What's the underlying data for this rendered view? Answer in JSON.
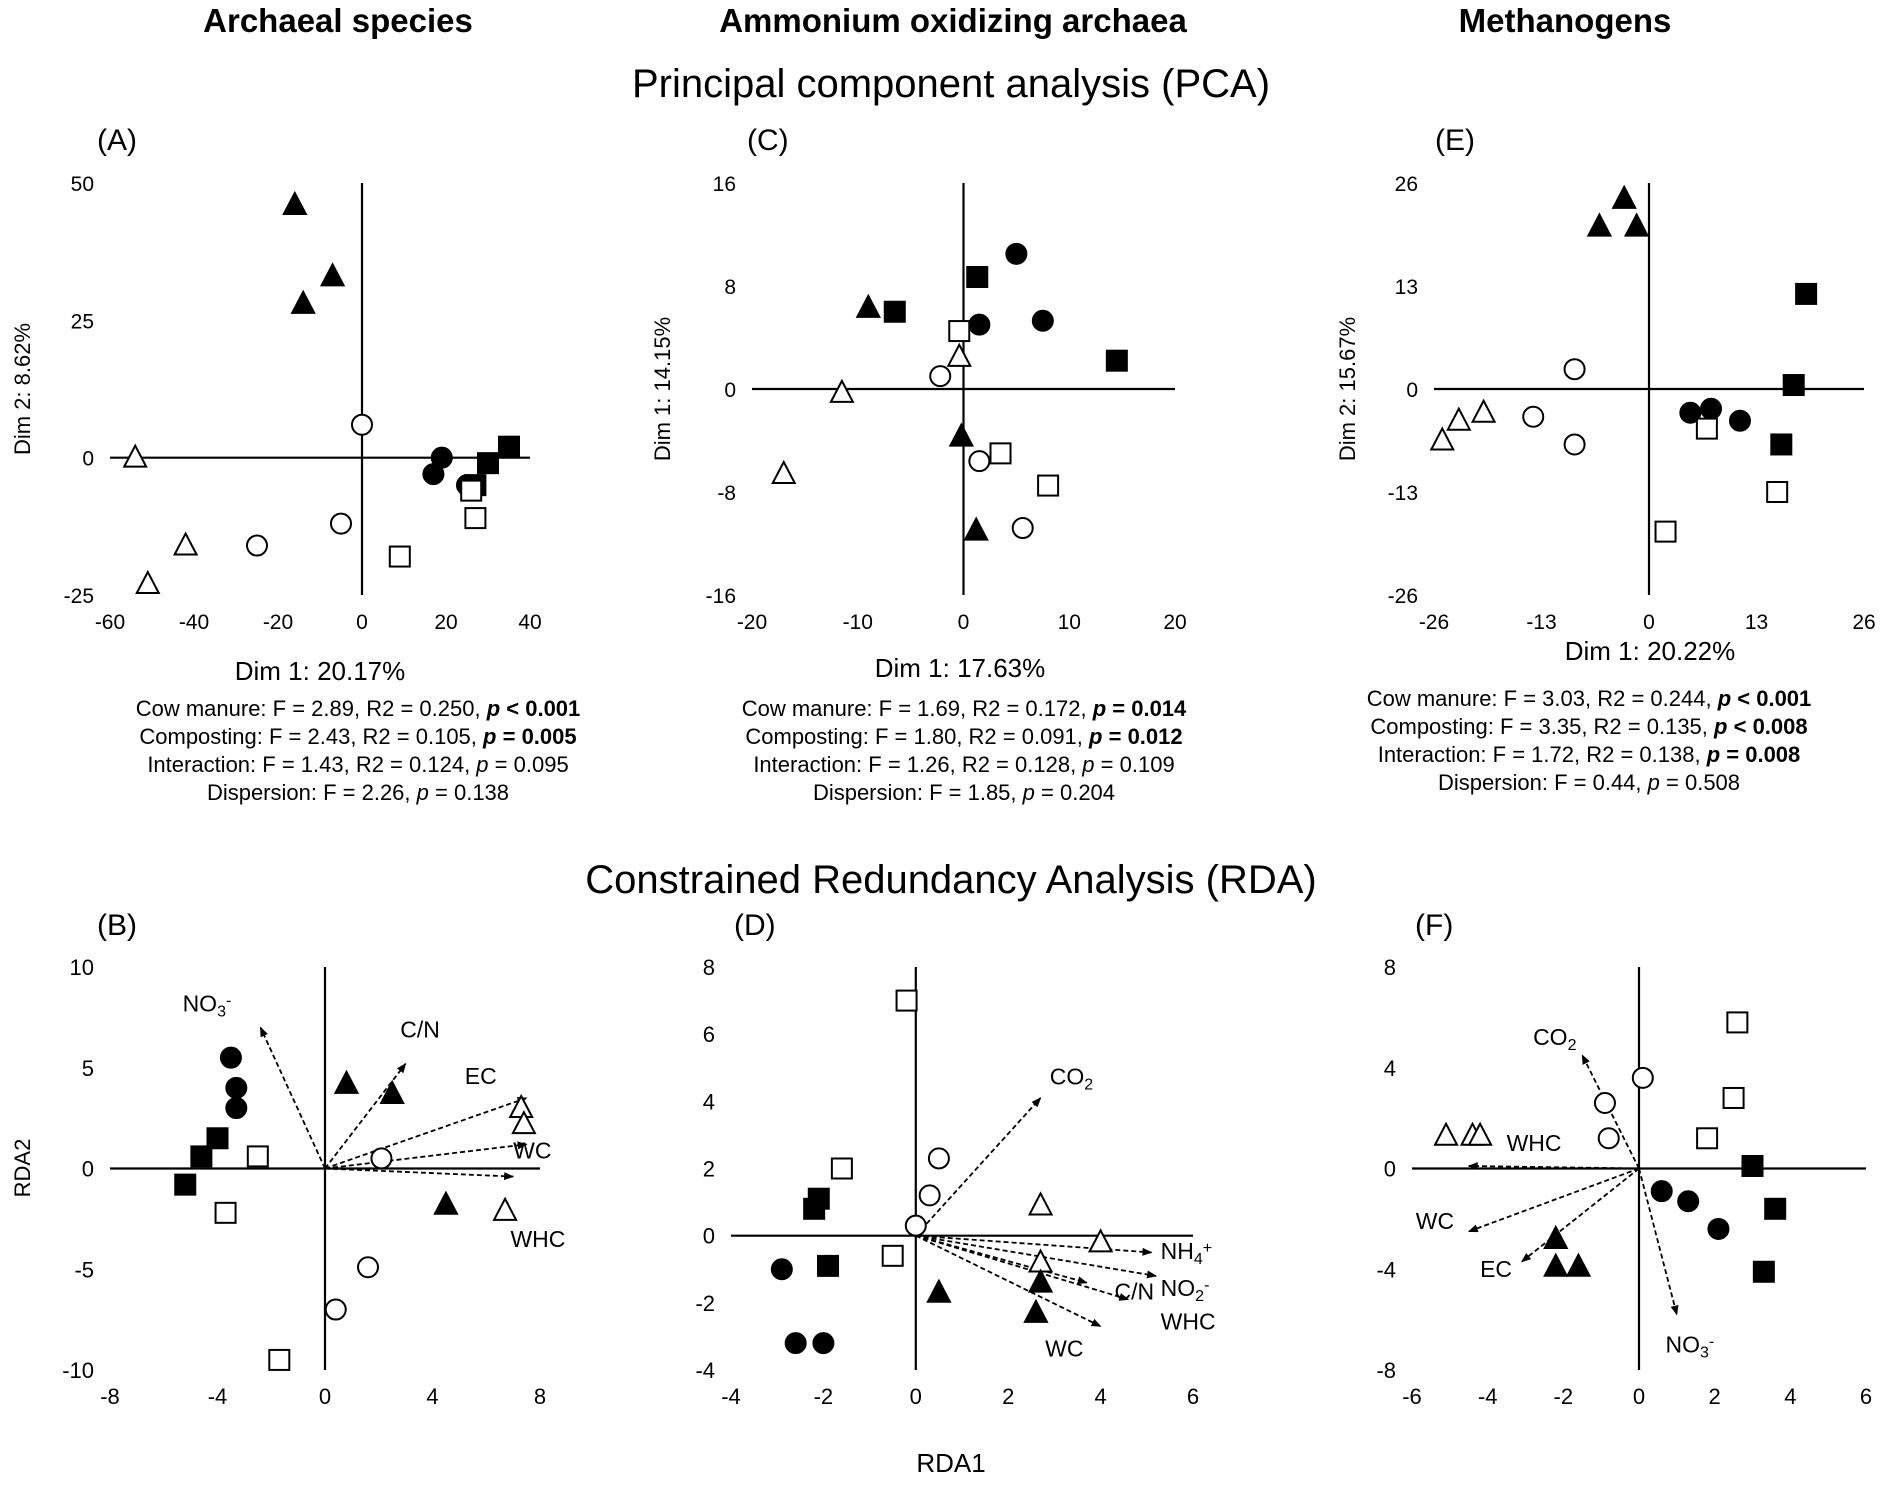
{
  "column_titles": [
    "Archaeal species",
    "Ammonium oxidizing archaea",
    "Methanogens"
  ],
  "row_titles": {
    "pca": "Principal component analysis (PCA)",
    "rda": "Constrained Redundancy Analysis (RDA)"
  },
  "shared_xlabel": "RDA1",
  "chart_data": [
    {
      "panel": "(A)",
      "type": "scatter",
      "title": "PCA - Archaeal species",
      "xlabel": "Dim 1: 20.17%",
      "ylabel": "Dim 2: 8.62%",
      "xlim": [
        -60,
        40
      ],
      "ylim": [
        -25,
        50
      ],
      "xticks": [
        -60,
        -40,
        -20,
        0,
        20,
        40
      ],
      "yticks": [
        -25,
        0,
        25,
        50
      ],
      "points": [
        {
          "shape": "triangle",
          "fill": "filled",
          "x": -16,
          "y": 46
        },
        {
          "shape": "triangle",
          "fill": "filled",
          "x": -7,
          "y": 33
        },
        {
          "shape": "triangle",
          "fill": "filled",
          "x": -14,
          "y": 28
        },
        {
          "shape": "triangle",
          "fill": "open",
          "x": -54,
          "y": 0
        },
        {
          "shape": "triangle",
          "fill": "open",
          "x": -42,
          "y": -16
        },
        {
          "shape": "triangle",
          "fill": "open",
          "x": -51,
          "y": -23
        },
        {
          "shape": "circle",
          "fill": "open",
          "x": 0,
          "y": 6
        },
        {
          "shape": "circle",
          "fill": "open",
          "x": -5,
          "y": -12
        },
        {
          "shape": "circle",
          "fill": "open",
          "x": -25,
          "y": -16
        },
        {
          "shape": "circle",
          "fill": "filled",
          "x": 19,
          "y": 0
        },
        {
          "shape": "circle",
          "fill": "filled",
          "x": 17,
          "y": -3
        },
        {
          "shape": "circle",
          "fill": "filled",
          "x": 25,
          "y": -5
        },
        {
          "shape": "square",
          "fill": "filled",
          "x": 35,
          "y": 2
        },
        {
          "shape": "square",
          "fill": "filled",
          "x": 30,
          "y": -1
        },
        {
          "shape": "square",
          "fill": "filled",
          "x": 27,
          "y": -5
        },
        {
          "shape": "square",
          "fill": "open",
          "x": 27,
          "y": -11
        },
        {
          "shape": "square",
          "fill": "open",
          "x": 9,
          "y": -18
        },
        {
          "shape": "square",
          "fill": "open",
          "x": 26,
          "y": -6
        }
      ],
      "stats": [
        {
          "label": "Cow manure",
          "F": "2.89",
          "R2": "0.250",
          "p": "< 0.001",
          "sig": true
        },
        {
          "label": "Composting",
          "F": "2.43",
          "R2": "0.105",
          "p": "= 0.005",
          "sig": true
        },
        {
          "label": "Interaction",
          "F": "1.43",
          "R2": "0.124",
          "p": "= 0.095",
          "sig": false
        },
        {
          "label": "Dispersion",
          "F": "2.26",
          "p": "= 0.138",
          "sig": false
        }
      ]
    },
    {
      "panel": "(C)",
      "type": "scatter",
      "title": "PCA - Ammonium oxidizing archaea",
      "xlabel": "Dim 1: 17.63%",
      "ylabel": "Dim 1: 14.15%",
      "xlim": [
        -20,
        20
      ],
      "ylim": [
        -16,
        16
      ],
      "xticks": [
        -20,
        -10,
        0,
        10,
        20
      ],
      "yticks": [
        -16,
        -8,
        0,
        8,
        16
      ],
      "points": [
        {
          "shape": "circle",
          "fill": "filled",
          "x": 5,
          "y": 10.5
        },
        {
          "shape": "circle",
          "fill": "filled",
          "x": 1.5,
          "y": 5
        },
        {
          "shape": "circle",
          "fill": "filled",
          "x": 7.5,
          "y": 5.3
        },
        {
          "shape": "square",
          "fill": "filled",
          "x": 1.3,
          "y": 8.7
        },
        {
          "shape": "square",
          "fill": "filled",
          "x": -6.5,
          "y": 6
        },
        {
          "shape": "square",
          "fill": "filled",
          "x": 14.5,
          "y": 2.2
        },
        {
          "shape": "triangle",
          "fill": "filled",
          "x": -9,
          "y": 6.3
        },
        {
          "shape": "triangle",
          "fill": "filled",
          "x": -0.2,
          "y": -3.7
        },
        {
          "shape": "triangle",
          "fill": "filled",
          "x": 1.2,
          "y": -11
        },
        {
          "shape": "square",
          "fill": "open",
          "x": -0.4,
          "y": 4.5
        },
        {
          "shape": "square",
          "fill": "open",
          "x": 3.5,
          "y": -5
        },
        {
          "shape": "square",
          "fill": "open",
          "x": 8,
          "y": -7.5
        },
        {
          "shape": "triangle",
          "fill": "open",
          "x": -0.4,
          "y": 2.5
        },
        {
          "shape": "triangle",
          "fill": "open",
          "x": -11.5,
          "y": -0.3
        },
        {
          "shape": "triangle",
          "fill": "open",
          "x": -17,
          "y": -6.6
        },
        {
          "shape": "circle",
          "fill": "open",
          "x": -2.2,
          "y": 1
        },
        {
          "shape": "circle",
          "fill": "open",
          "x": 1.5,
          "y": -5.6
        },
        {
          "shape": "circle",
          "fill": "open",
          "x": 5.6,
          "y": -10.8
        }
      ],
      "stats": [
        {
          "label": "Cow manure",
          "F": "1.69",
          "R2": "0.172",
          "p": "= 0.014",
          "sig": true
        },
        {
          "label": "Composting",
          "F": "1.80",
          "R2": "0.091",
          "p": "= 0.012",
          "sig": true
        },
        {
          "label": "Interaction",
          "F": "1.26",
          "R2": "0.128",
          "p": "= 0.109",
          "sig": false
        },
        {
          "label": "Dispersion",
          "F": "1.85",
          "p": "= 0.204",
          "sig": false
        }
      ]
    },
    {
      "panel": "(E)",
      "type": "scatter",
      "title": "PCA - Methanogens",
      "xlabel": "Dim 1: 20.22%",
      "ylabel": "Dim 2: 15.67%",
      "xlim": [
        -26,
        26
      ],
      "ylim": [
        -26,
        26
      ],
      "xticks": [
        -26,
        -13,
        0,
        13,
        26
      ],
      "yticks": [
        -26,
        -13,
        0,
        13,
        26
      ],
      "points": [
        {
          "shape": "triangle",
          "fill": "filled",
          "x": -3,
          "y": 24
        },
        {
          "shape": "triangle",
          "fill": "filled",
          "x": -6,
          "y": 20.5
        },
        {
          "shape": "triangle",
          "fill": "filled",
          "x": -1.5,
          "y": 20.5
        },
        {
          "shape": "square",
          "fill": "filled",
          "x": 19,
          "y": 12
        },
        {
          "shape": "square",
          "fill": "filled",
          "x": 17.5,
          "y": 0.5
        },
        {
          "shape": "square",
          "fill": "filled",
          "x": 16,
          "y": -7
        },
        {
          "shape": "circle",
          "fill": "open",
          "x": -9,
          "y": 2.5
        },
        {
          "shape": "circle",
          "fill": "open",
          "x": -14,
          "y": -3.5
        },
        {
          "shape": "circle",
          "fill": "open",
          "x": -9,
          "y": -7
        },
        {
          "shape": "triangle",
          "fill": "open",
          "x": -20,
          "y": -3
        },
        {
          "shape": "triangle",
          "fill": "open",
          "x": -23,
          "y": -4
        },
        {
          "shape": "triangle",
          "fill": "open",
          "x": -25,
          "y": -6.5
        },
        {
          "shape": "circle",
          "fill": "filled",
          "x": 5,
          "y": -3
        },
        {
          "shape": "circle",
          "fill": "filled",
          "x": 7.5,
          "y": -2.5
        },
        {
          "shape": "circle",
          "fill": "filled",
          "x": 11,
          "y": -4
        },
        {
          "shape": "square",
          "fill": "open",
          "x": 7,
          "y": -5
        },
        {
          "shape": "square",
          "fill": "open",
          "x": 15.5,
          "y": -13
        },
        {
          "shape": "square",
          "fill": "open",
          "x": 2,
          "y": -18
        }
      ],
      "stats": [
        {
          "label": "Cow manure",
          "F": "3.03",
          "R2": "0.244",
          "p": "< 0.001",
          "sig": true
        },
        {
          "label": "Composting",
          "F": "3.35",
          "R2": "0.135",
          "p": "< 0.008",
          "sig": true
        },
        {
          "label": "Interaction",
          "F": "1.72",
          "R2": "0.138",
          "p": "= 0.008",
          "sig": true
        },
        {
          "label": "Dispersion",
          "F": "0.44",
          "p": "= 0.508",
          "sig": false
        }
      ]
    },
    {
      "panel": "(B)",
      "type": "scatter",
      "title": "RDA - Archaeal species",
      "xlabel": "RDA1",
      "ylabel": "RDA2",
      "xlim": [
        -8,
        8
      ],
      "ylim": [
        -10,
        10
      ],
      "xticks": [
        -8,
        -4,
        0,
        4,
        8
      ],
      "yticks": [
        -10,
        -5,
        0,
        5,
        10
      ],
      "vectors": [
        {
          "label": "NO3-",
          "x": -2.4,
          "y": 7,
          "lx": -5.3,
          "ly": 7.8
        },
        {
          "label": "C/N",
          "x": 3,
          "y": 5.2,
          "lx": 2.8,
          "ly": 6.5
        },
        {
          "label": "EC",
          "x": 7.5,
          "y": 3.5,
          "lx": 5.2,
          "ly": 4.2
        },
        {
          "label": "WC",
          "x": 7.5,
          "y": 1.2,
          "lx": 7,
          "ly": 0.5
        },
        {
          "label": "WHC",
          "x": 7,
          "y": -0.4,
          "lx": 6.9,
          "ly": -3.9
        }
      ],
      "points": [
        {
          "shape": "circle",
          "fill": "filled",
          "x": -3.5,
          "y": 5.5
        },
        {
          "shape": "circle",
          "fill": "filled",
          "x": -3.3,
          "y": 4
        },
        {
          "shape": "circle",
          "fill": "filled",
          "x": -3.3,
          "y": 3
        },
        {
          "shape": "triangle",
          "fill": "filled",
          "x": 0.8,
          "y": 4.2
        },
        {
          "shape": "triangle",
          "fill": "filled",
          "x": 2.5,
          "y": 3.7
        },
        {
          "shape": "triangle",
          "fill": "filled",
          "x": 4.5,
          "y": -1.8
        },
        {
          "shape": "square",
          "fill": "filled",
          "x": -4,
          "y": 1.5
        },
        {
          "shape": "square",
          "fill": "filled",
          "x": -4.6,
          "y": 0.6
        },
        {
          "shape": "square",
          "fill": "filled",
          "x": -5.2,
          "y": -0.8
        },
        {
          "shape": "square",
          "fill": "open",
          "x": -2.5,
          "y": 0.6
        },
        {
          "shape": "square",
          "fill": "open",
          "x": -3.7,
          "y": -2.2
        },
        {
          "shape": "square",
          "fill": "open",
          "x": -1.7,
          "y": -9.5
        },
        {
          "shape": "triangle",
          "fill": "open",
          "x": 7.3,
          "y": 3
        },
        {
          "shape": "triangle",
          "fill": "open",
          "x": 7.4,
          "y": 2.2
        },
        {
          "shape": "triangle",
          "fill": "open",
          "x": 6.7,
          "y": -2.1
        },
        {
          "shape": "circle",
          "fill": "open",
          "x": 2.1,
          "y": 0.5
        },
        {
          "shape": "circle",
          "fill": "open",
          "x": 1.6,
          "y": -4.9
        },
        {
          "shape": "circle",
          "fill": "open",
          "x": 0.4,
          "y": -7
        }
      ]
    },
    {
      "panel": "(D)",
      "type": "scatter",
      "title": "RDA - Ammonium oxidizing archaea",
      "xlabel": "RDA1",
      "ylabel": "",
      "xlim": [
        -4,
        6
      ],
      "ylim": [
        -4,
        8
      ],
      "xticks": [
        -4,
        -2,
        0,
        2,
        4,
        6
      ],
      "yticks": [
        -4,
        -2,
        0,
        2,
        4,
        6,
        8
      ],
      "vectors": [
        {
          "label": "CO2",
          "x": 2.7,
          "y": 4.1,
          "lx": 2.9,
          "ly": 4.5
        },
        {
          "label": "NH4+",
          "x": 5.1,
          "y": -0.5,
          "lx": 5.3,
          "ly": -0.7
        },
        {
          "label": "C/N",
          "x": 3.7,
          "y": -1.4,
          "lx": 4.3,
          "ly": -1.9
        },
        {
          "label": "NO2-",
          "x": 5.2,
          "y": -1.2,
          "lx": 5.3,
          "ly": -1.8
        },
        {
          "label": "WHC",
          "x": 4,
          "y": -2.7,
          "lx": 5.3,
          "ly": -2.8
        },
        {
          "label": "WC",
          "x": 4.6,
          "y": -1.9,
          "lx": 2.8,
          "ly": -3.6
        }
      ],
      "points": [
        {
          "shape": "square",
          "fill": "open",
          "x": -0.2,
          "y": 7
        },
        {
          "shape": "square",
          "fill": "open",
          "x": -1.6,
          "y": 2
        },
        {
          "shape": "square",
          "fill": "open",
          "x": -0.5,
          "y": -0.6
        },
        {
          "shape": "square",
          "fill": "filled",
          "x": -2.1,
          "y": 1.1
        },
        {
          "shape": "square",
          "fill": "filled",
          "x": -2.2,
          "y": 0.8
        },
        {
          "shape": "square",
          "fill": "filled",
          "x": -1.9,
          "y": -0.9
        },
        {
          "shape": "circle",
          "fill": "open",
          "x": 0.5,
          "y": 2.3
        },
        {
          "shape": "circle",
          "fill": "open",
          "x": 0.3,
          "y": 1.2
        },
        {
          "shape": "circle",
          "fill": "open",
          "x": 0,
          "y": 0.3
        },
        {
          "shape": "circle",
          "fill": "filled",
          "x": -2.9,
          "y": -1
        },
        {
          "shape": "circle",
          "fill": "filled",
          "x": -2.6,
          "y": -3.2
        },
        {
          "shape": "circle",
          "fill": "filled",
          "x": -2,
          "y": -3.2
        },
        {
          "shape": "triangle",
          "fill": "open",
          "x": 2.7,
          "y": 0.9
        },
        {
          "shape": "triangle",
          "fill": "open",
          "x": 4,
          "y": -0.2
        },
        {
          "shape": "triangle",
          "fill": "open",
          "x": 2.7,
          "y": -0.8
        },
        {
          "shape": "triangle",
          "fill": "filled",
          "x": 0.5,
          "y": -1.7
        },
        {
          "shape": "triangle",
          "fill": "filled",
          "x": 2.7,
          "y": -1.4
        },
        {
          "shape": "triangle",
          "fill": "filled",
          "x": 2.6,
          "y": -2.3
        }
      ]
    },
    {
      "panel": "(F)",
      "type": "scatter",
      "title": "RDA - Methanogens",
      "xlabel": "RDA1",
      "ylabel": "",
      "xlim": [
        -6,
        6
      ],
      "ylim": [
        -8,
        8
      ],
      "xticks": [
        -6,
        -4,
        -2,
        0,
        2,
        4,
        6
      ],
      "yticks": [
        -8,
        -4,
        0,
        4,
        8
      ],
      "vectors": [
        {
          "label": "CO2",
          "x": -1.5,
          "y": 4.5,
          "lx": -2.8,
          "ly": 4.9
        },
        {
          "label": "WHC",
          "x": -4.5,
          "y": 0.1,
          "lx": -3.5,
          "ly": 0.7
        },
        {
          "label": "WC",
          "x": -4.5,
          "y": -2.5,
          "lx": -5.9,
          "ly": -2.4
        },
        {
          "label": "EC",
          "x": -3.1,
          "y": -3.7,
          "lx": -4.2,
          "ly": -4.3
        },
        {
          "label": "NO3-",
          "x": 1,
          "y": -5.8,
          "lx": 0.7,
          "ly": -7.3
        }
      ],
      "points": [
        {
          "shape": "circle",
          "fill": "open",
          "x": 0.1,
          "y": 3.6
        },
        {
          "shape": "circle",
          "fill": "open",
          "x": -0.9,
          "y": 2.6
        },
        {
          "shape": "circle",
          "fill": "open",
          "x": -0.8,
          "y": 1.2
        },
        {
          "shape": "square",
          "fill": "open",
          "x": 2.6,
          "y": 5.8
        },
        {
          "shape": "square",
          "fill": "open",
          "x": 2.5,
          "y": 2.8
        },
        {
          "shape": "square",
          "fill": "open",
          "x": 1.8,
          "y": 1.2
        },
        {
          "shape": "triangle",
          "fill": "open",
          "x": -5.1,
          "y": 1.3
        },
        {
          "shape": "triangle",
          "fill": "open",
          "x": -4.4,
          "y": 1.3
        },
        {
          "shape": "triangle",
          "fill": "open",
          "x": -4.2,
          "y": 1.3
        },
        {
          "shape": "square",
          "fill": "filled",
          "x": 3,
          "y": 0.1
        },
        {
          "shape": "square",
          "fill": "filled",
          "x": 3.6,
          "y": -1.6
        },
        {
          "shape": "square",
          "fill": "filled",
          "x": 3.3,
          "y": -4.1
        },
        {
          "shape": "circle",
          "fill": "filled",
          "x": 0.6,
          "y": -0.9
        },
        {
          "shape": "circle",
          "fill": "filled",
          "x": 1.3,
          "y": -1.3
        },
        {
          "shape": "circle",
          "fill": "filled",
          "x": 2.1,
          "y": -2.4
        },
        {
          "shape": "triangle",
          "fill": "filled",
          "x": -2.2,
          "y": -2.8
        },
        {
          "shape": "triangle",
          "fill": "filled",
          "x": -2.2,
          "y": -3.9
        },
        {
          "shape": "triangle",
          "fill": "filled",
          "x": -1.6,
          "y": -3.9
        }
      ]
    }
  ]
}
